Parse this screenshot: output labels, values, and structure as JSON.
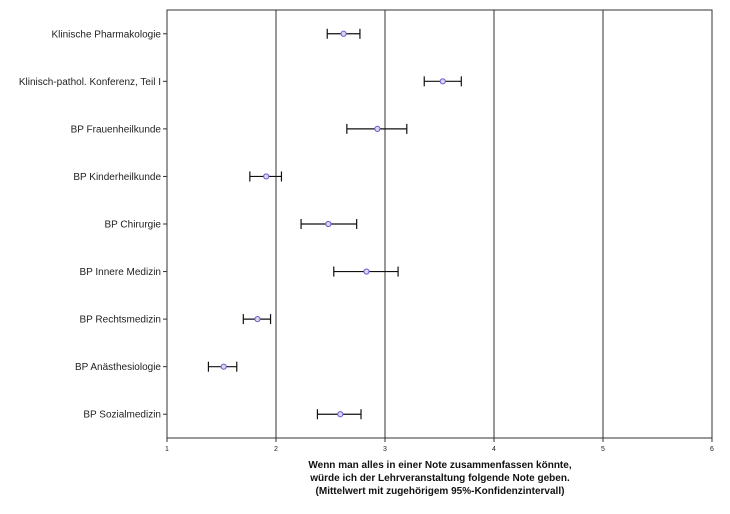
{
  "chart_data": {
    "type": "scatter",
    "orientation": "horizontal",
    "categories": [
      "Klinische Pharmakologie",
      "Klinisch-pathol. Konferenz, Teil I",
      "BP Frauenheilkunde",
      "BP Kinderheilkunde",
      "BP Chirurgie",
      "BP Innere Medizin",
      "BP Rechtsmedizin",
      "BP Anästhesiologie",
      "BP Sozialmedizin"
    ],
    "means": [
      2.62,
      3.53,
      2.93,
      1.91,
      2.48,
      2.83,
      1.83,
      1.52,
      2.59
    ],
    "ci_low": [
      2.47,
      3.36,
      2.65,
      1.76,
      2.23,
      2.53,
      1.7,
      1.38,
      2.38
    ],
    "ci_high": [
      2.77,
      3.7,
      3.2,
      2.05,
      2.74,
      3.12,
      1.95,
      1.64,
      2.78
    ],
    "xlim": [
      1,
      6
    ],
    "xticks": [
      "1",
      "2",
      "3",
      "4",
      "5",
      "6"
    ],
    "gridlines_x": [
      2,
      3,
      4,
      5
    ],
    "xlabel": [
      "Wenn man alles in einer Note zusammenfassen könnte,",
      "würde ich der Lehrveranstaltung folgende Note geben.",
      "(Mittelwert mit zugehörigem 95%-Konfidenzintervall)"
    ],
    "marker_color": "#6a5acd",
    "grid": true,
    "legend": "none"
  }
}
